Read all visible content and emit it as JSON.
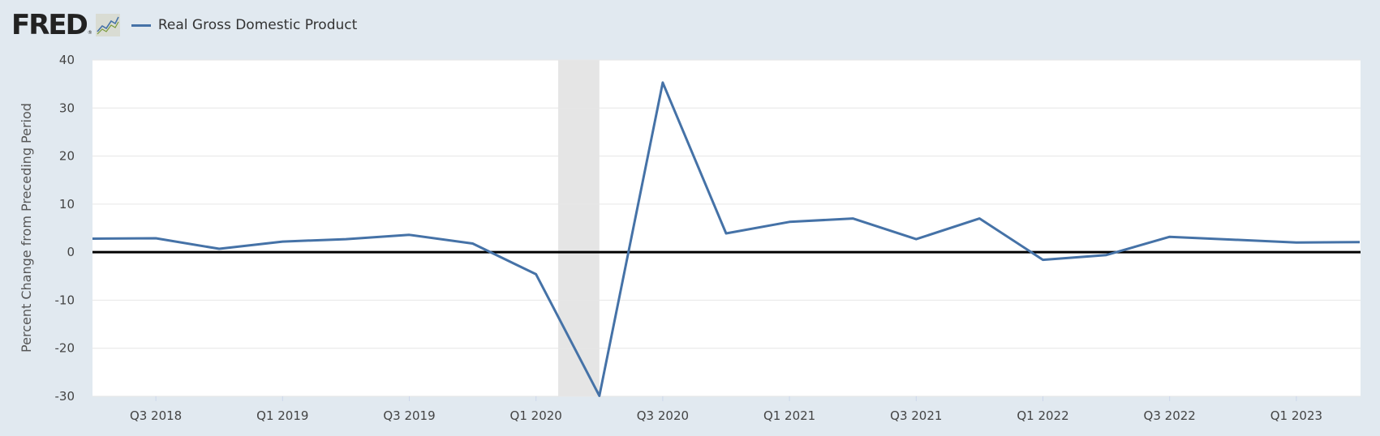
{
  "header": {
    "logo_text": "FRED",
    "logo_mark": "®",
    "legend_label": "Real Gross Domestic Product"
  },
  "colors": {
    "background": "#e1e9f0",
    "plot_background": "#ffffff",
    "series": "#4572a7",
    "recession": "#e5e5e5",
    "gridline": "#e6e6e6",
    "zero_line": "#000000"
  },
  "icons": {
    "logo_graph": "fred-graph-icon"
  },
  "chart_data": {
    "type": "line",
    "title": "",
    "xlabel": "",
    "ylabel": "Percent Change from Preceding Period",
    "ylim": [
      -30,
      40
    ],
    "yticks": [
      40,
      30,
      20,
      10,
      0,
      -10,
      -20,
      -30
    ],
    "grid": true,
    "legend_position": "top-left",
    "x_tick_labels": [
      "Q3 2018",
      "Q1 2019",
      "Q3 2019",
      "Q1 2020",
      "Q3 2020",
      "Q1 2021",
      "Q3 2021",
      "Q1 2022",
      "Q3 2022",
      "Q1 2023"
    ],
    "x": [
      "Q2 2018",
      "Q3 2018",
      "Q4 2018",
      "Q1 2019",
      "Q2 2019",
      "Q3 2019",
      "Q4 2019",
      "Q1 2020",
      "Q2 2020",
      "Q3 2020",
      "Q4 2020",
      "Q1 2021",
      "Q2 2021",
      "Q3 2021",
      "Q4 2021",
      "Q1 2022",
      "Q2 2022",
      "Q3 2022",
      "Q4 2022",
      "Q1 2023",
      "Q2 2023"
    ],
    "series": [
      {
        "name": "Real Gross Domestic Product",
        "values": [
          2.8,
          2.9,
          0.7,
          2.2,
          2.7,
          3.6,
          1.8,
          -4.6,
          -29.9,
          35.3,
          3.9,
          6.3,
          7.0,
          2.7,
          7.0,
          -1.6,
          -0.6,
          3.2,
          2.6,
          2.0,
          2.1
        ]
      }
    ],
    "recession_shading": {
      "start": "Q1 2020",
      "end": "Q2 2020",
      "start_offset": 0.35,
      "end_offset": 1.0
    }
  }
}
